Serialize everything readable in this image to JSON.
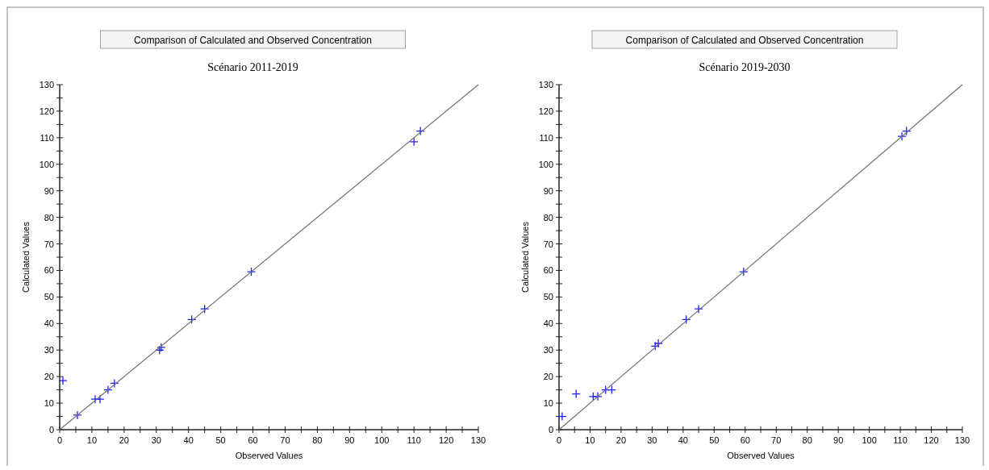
{
  "chart_data": [
    {
      "type": "scatter",
      "title": "Comparison of Calculated and Observed Concentration",
      "subtitle": "Scénario 2011-2019",
      "xlabel": "Observed Values",
      "ylabel": "Calculated Values",
      "grid": false,
      "xlim": [
        0,
        130
      ],
      "ylim": [
        0,
        130
      ],
      "xticks": [
        0,
        {
          "value": 5,
          "label": null
        },
        10,
        {
          "value": 15,
          "label": null
        },
        20,
        {
          "value": 25,
          "label": null
        },
        30,
        {
          "value": 35,
          "label": null
        },
        40,
        {
          "value": 45,
          "label": null
        },
        50,
        {
          "value": 55,
          "label": null
        },
        60,
        {
          "value": 65,
          "label": null
        },
        70,
        {
          "value": 75,
          "label": null
        },
        80,
        {
          "value": 85,
          "label": null
        },
        90,
        {
          "value": 95,
          "label": null
        },
        100,
        {
          "value": 105,
          "label": null
        },
        110,
        {
          "value": 115,
          "label": null
        },
        120,
        {
          "value": 125,
          "label": null
        },
        130
      ],
      "yticks": [
        0,
        {
          "value": 5,
          "label": null
        },
        10,
        {
          "value": 15,
          "label": null
        },
        20,
        {
          "value": 25,
          "label": null
        },
        30,
        {
          "value": 35,
          "label": null
        },
        40,
        {
          "value": 45,
          "label": null
        },
        50,
        {
          "value": 55,
          "label": null
        },
        60,
        {
          "value": 65,
          "label": null
        },
        70,
        {
          "value": 75,
          "label": null
        },
        80,
        {
          "value": 85,
          "label": null
        },
        90,
        {
          "value": 95,
          "label": null
        },
        100,
        {
          "value": 105,
          "label": null
        },
        110,
        {
          "value": 115,
          "label": null
        },
        120,
        {
          "value": 125,
          "label": null
        },
        130
      ],
      "series": [
        {
          "marker": "cross",
          "color": "#2020ff",
          "x": [
            1,
            5.5,
            11,
            12.5,
            15,
            17,
            31,
            31.5,
            41,
            45,
            59.5,
            110,
            112
          ],
          "values": [
            18.5,
            5.5,
            11.5,
            11.5,
            15,
            17.5,
            30,
            31,
            41.5,
            45.5,
            59.5,
            108.5,
            112.5
          ]
        },
        {
          "type": "line",
          "color": "#707070",
          "x": [
            0,
            130
          ],
          "values": [
            0,
            130
          ]
        }
      ]
    },
    {
      "type": "scatter",
      "title": "Comparison of Calculated and Observed Concentration",
      "subtitle": "Scénario 2019-2030",
      "xlabel": "Observed Values",
      "ylabel": "Calculated Values",
      "grid": false,
      "xlim": [
        0,
        130
      ],
      "ylim": [
        0,
        130
      ],
      "xticks": [
        0,
        {
          "value": 5,
          "label": null
        },
        10,
        {
          "value": 15,
          "label": null
        },
        20,
        {
          "value": 25,
          "label": null
        },
        30,
        {
          "value": 35,
          "label": null
        },
        40,
        {
          "value": 45,
          "label": null
        },
        50,
        {
          "value": 55,
          "label": null
        },
        60,
        {
          "value": 65,
          "label": null
        },
        70,
        {
          "value": 75,
          "label": null
        },
        80,
        {
          "value": 85,
          "label": null
        },
        90,
        {
          "value": 95,
          "label": null
        },
        100,
        {
          "value": 105,
          "label": null
        },
        110,
        {
          "value": 115,
          "label": null
        },
        120,
        {
          "value": 125,
          "label": null
        },
        130
      ],
      "yticks": [
        0,
        {
          "value": 5,
          "label": null
        },
        10,
        {
          "value": 15,
          "label": null
        },
        20,
        {
          "value": 25,
          "label": null
        },
        30,
        {
          "value": 35,
          "label": null
        },
        40,
        {
          "value": 45,
          "label": null
        },
        50,
        {
          "value": 55,
          "label": null
        },
        60,
        {
          "value": 65,
          "label": null
        },
        70,
        {
          "value": 75,
          "label": null
        },
        80,
        {
          "value": 85,
          "label": null
        },
        90,
        {
          "value": 95,
          "label": null
        },
        100,
        {
          "value": 105,
          "label": null
        },
        110,
        {
          "value": 115,
          "label": null
        },
        120,
        {
          "value": 125,
          "label": null
        },
        130
      ],
      "series": [
        {
          "marker": "cross",
          "color": "#2020ff",
          "x": [
            1,
            5.5,
            11,
            12.5,
            15,
            17,
            31,
            32,
            41,
            45,
            59.5,
            110.5,
            112
          ],
          "values": [
            5,
            13.5,
            12.5,
            12.5,
            15,
            15,
            31.5,
            32.5,
            41.5,
            45.5,
            59.5,
            110.5,
            112.5
          ]
        },
        {
          "type": "line",
          "color": "#707070",
          "x": [
            0,
            130
          ],
          "values": [
            0,
            130
          ]
        }
      ]
    }
  ]
}
